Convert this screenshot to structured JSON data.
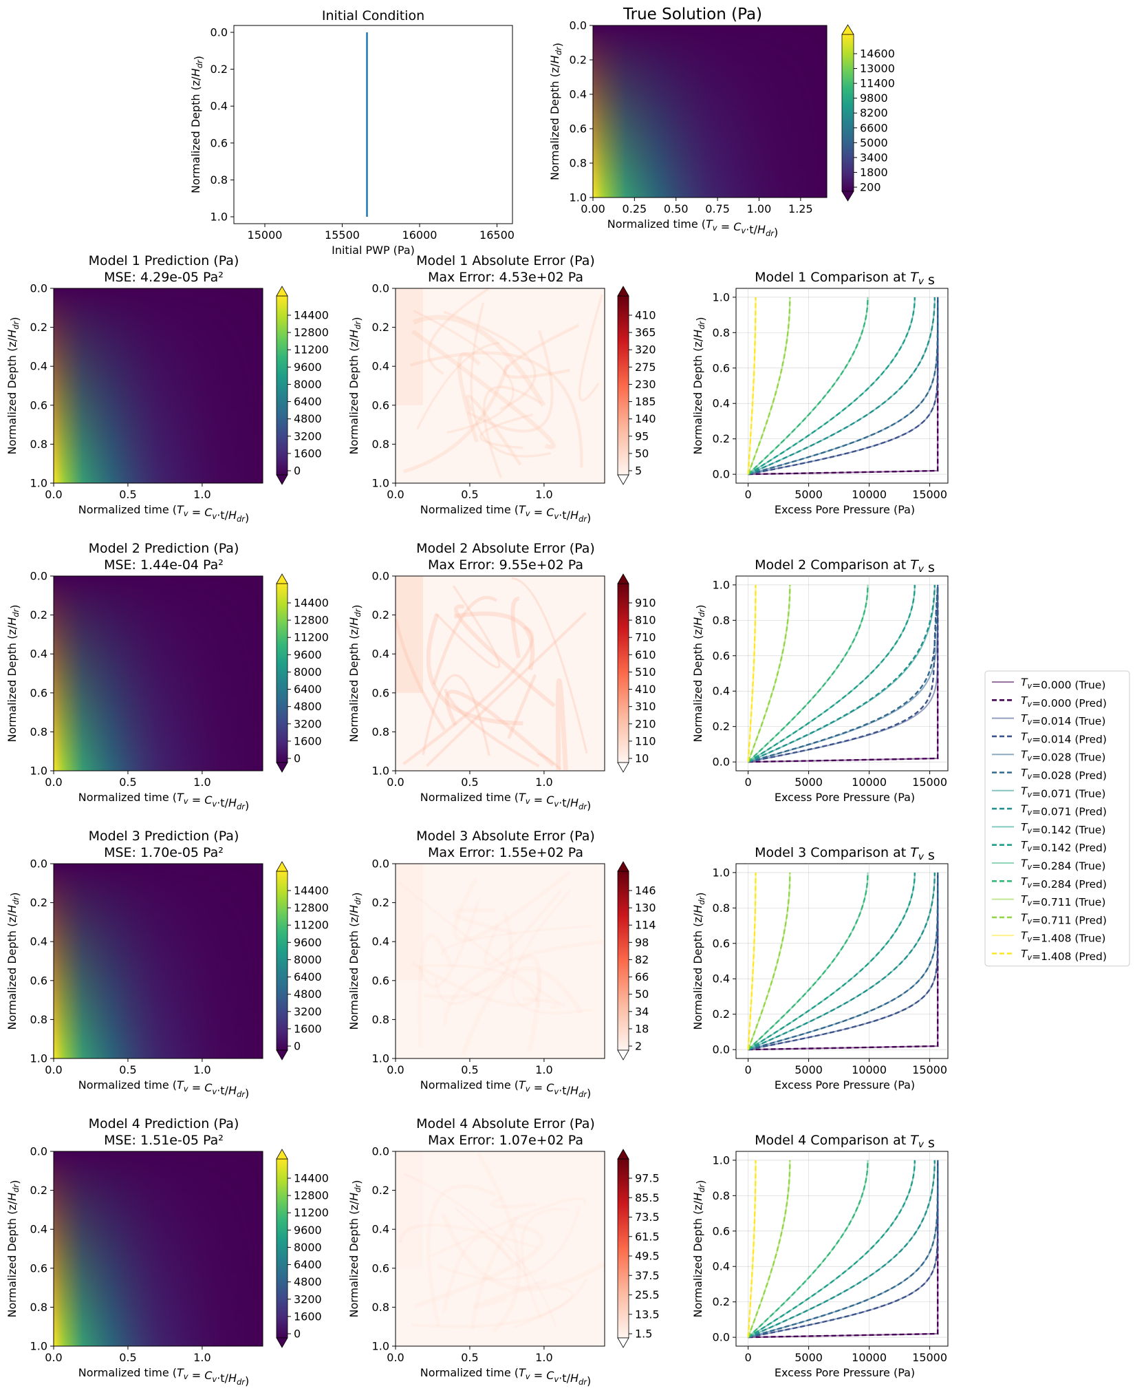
{
  "chart_data": {
    "type": "figure",
    "common": {
      "ylabel": "Normalized Depth (z/H_dr)",
      "xlabel_time": "Normalized time (T_v = C_v·t/H_dr)",
      "depth_ticks": [
        0.0,
        0.2,
        0.4,
        0.6,
        0.8,
        1.0
      ],
      "initial_pwp": 15660,
      "time_range": [
        0,
        1.408
      ]
    },
    "initial_condition": {
      "type": "line",
      "title": "Initial Condition",
      "xlabel": "Initial PWP (Pa)",
      "ylabel": "Normalized Depth (z/H_dr)",
      "xlim": [
        14800,
        16600
      ],
      "xticks": [
        15000,
        15500,
        16000,
        16500
      ],
      "ylim": [
        1.0,
        0.0
      ],
      "x": [
        15660,
        15660
      ],
      "y": [
        0.0,
        1.0
      ],
      "color": "#1f77b4"
    },
    "true_solution": {
      "type": "heatmap",
      "title": "True Solution (Pa)",
      "xlabel": "Normalized time (T_v = C_v·t/H_dr)",
      "xticks": [
        0.0,
        0.25,
        0.5,
        0.75,
        1.0,
        1.25
      ],
      "colorbar_ticks": [
        200,
        1800,
        3400,
        5000,
        6600,
        8200,
        9800,
        11400,
        13000,
        14600
      ],
      "colormap": "viridis"
    },
    "models": [
      {
        "prediction": {
          "title": "Model 1 Prediction (Pa)",
          "subtitle": "MSE: 4.29e-05 Pa²",
          "colorbar_ticks": [
            0,
            1600,
            3200,
            4800,
            6400,
            8000,
            9600,
            11200,
            12800,
            14400
          ]
        },
        "error": {
          "title": "Model 1 Absolute Error (Pa)",
          "subtitle": "Max Error: 4.53e+02 Pa",
          "max_error": 453,
          "intensity": 0.22,
          "colorbar_ticks": [
            "5",
            "50",
            "95",
            "140",
            "185",
            "230",
            "275",
            "320",
            "365",
            "410"
          ]
        },
        "comparison": {
          "title": "Model 1 Comparison at T_v s",
          "xlabel": "Excess Pore Pressure (Pa)",
          "pred_offset": 0
        }
      },
      {
        "prediction": {
          "title": "Model 2 Prediction (Pa)",
          "subtitle": "MSE: 1.44e-04 Pa²",
          "colorbar_ticks": [
            0,
            1600,
            3200,
            4800,
            6400,
            8000,
            9600,
            11200,
            12800,
            14400
          ]
        },
        "error": {
          "title": "Model 2 Absolute Error (Pa)",
          "subtitle": "Max Error: 9.55e+02 Pa",
          "max_error": 955,
          "intensity": 0.32,
          "colorbar_ticks": [
            "10",
            "110",
            "210",
            "310",
            "410",
            "510",
            "610",
            "710",
            "810",
            "910"
          ]
        },
        "comparison": {
          "title": "Model 2 Comparison at T_v s",
          "xlabel": "Excess Pore Pressure (Pa)",
          "pred_offset": 400
        }
      },
      {
        "prediction": {
          "title": "Model 3 Prediction (Pa)",
          "subtitle": "MSE: 1.70e-05 Pa²",
          "colorbar_ticks": [
            0,
            1600,
            3200,
            4800,
            6400,
            8000,
            9600,
            11200,
            12800,
            14400
          ]
        },
        "error": {
          "title": "Model 3 Absolute Error (Pa)",
          "subtitle": "Max Error: 1.55e+02 Pa",
          "max_error": 155,
          "intensity": 0.08,
          "colorbar_ticks": [
            "2",
            "18",
            "34",
            "50",
            "66",
            "82",
            "98",
            "114",
            "130",
            "146"
          ]
        },
        "comparison": {
          "title": "Model 3 Comparison at T_v s",
          "xlabel": "Excess Pore Pressure (Pa)",
          "pred_offset": 0
        }
      },
      {
        "prediction": {
          "title": "Model 4 Prediction (Pa)",
          "subtitle": "MSE: 1.51e-05 Pa²",
          "colorbar_ticks": [
            0,
            1600,
            3200,
            4800,
            6400,
            8000,
            9600,
            11200,
            12800,
            14400
          ]
        },
        "error": {
          "title": "Model 4 Absolute Error (Pa)",
          "subtitle": "Max Error: 1.07e+02 Pa",
          "max_error": 107,
          "intensity": 0.07,
          "colorbar_ticks": [
            "1.5",
            "13.5",
            "25.5",
            "37.5",
            "49.5",
            "61.5",
            "73.5",
            "85.5",
            "97.5"
          ]
        },
        "comparison": {
          "title": "Model 4 Comparison at T_v s",
          "xlabel": "Excess Pore Pressure (Pa)",
          "pred_offset": 0
        }
      }
    ],
    "comparison_axes": {
      "xticks": [
        0,
        5000,
        10000,
        15000
      ],
      "xlim": [
        -1000,
        16500
      ],
      "ylim": [
        1.05,
        -0.05
      ]
    },
    "tv_series": [
      {
        "tv": "0.000",
        "color": "#440154"
      },
      {
        "tv": "0.014",
        "color": "#3b528b"
      },
      {
        "tv": "0.028",
        "color": "#31688e"
      },
      {
        "tv": "0.071",
        "color": "#21918c"
      },
      {
        "tv": "0.142",
        "color": "#1f9e89"
      },
      {
        "tv": "0.284",
        "color": "#35b779"
      },
      {
        "tv": "0.711",
        "color": "#90d743"
      },
      {
        "tv": "1.408",
        "color": "#fde725"
      }
    ],
    "legend": [
      "T_v=0.000 (True)",
      "T_v=0.000 (Pred)",
      "T_v=0.014 (True)",
      "T_v=0.014 (Pred)",
      "T_v=0.028 (True)",
      "T_v=0.028 (Pred)",
      "T_v=0.071 (True)",
      "T_v=0.071 (Pred)",
      "T_v=0.142 (True)",
      "T_v=0.142 (Pred)",
      "T_v=0.284 (True)",
      "T_v=0.284 (Pred)",
      "T_v=0.711 (True)",
      "T_v=0.711 (Pred)",
      "T_v=1.408 (True)",
      "T_v=1.408 (Pred)"
    ]
  }
}
